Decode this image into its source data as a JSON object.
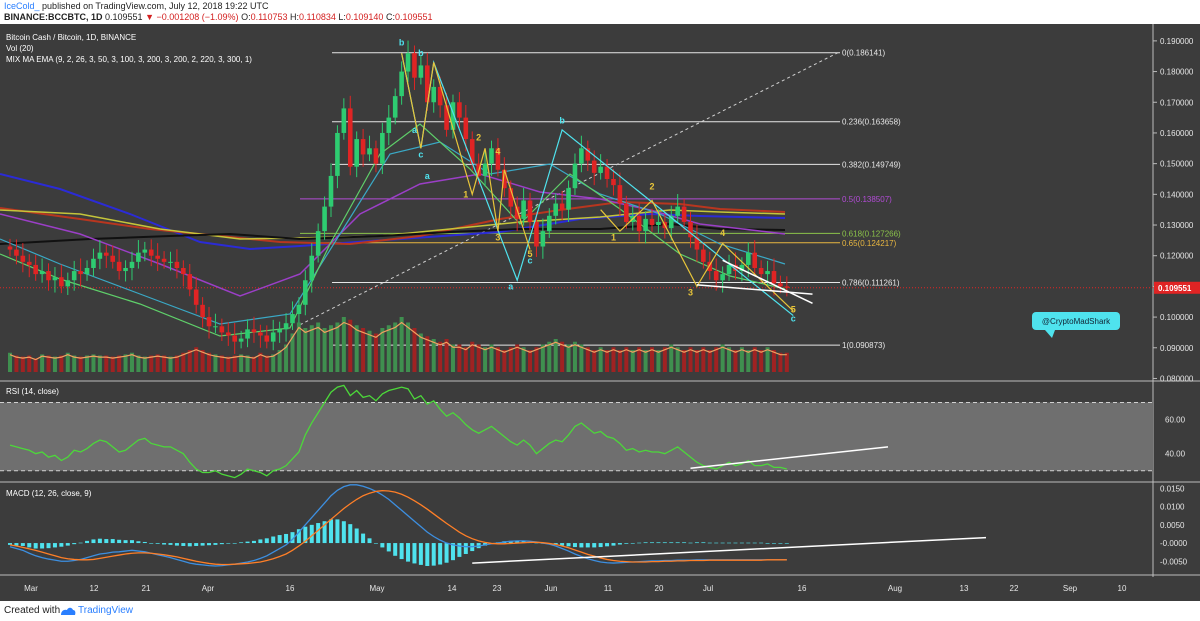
{
  "header": {
    "username": "IceCold_",
    "published_text": "published on TradingView.com, July 12, 2018 19:22 UTC",
    "symbol": "BINANCE:BCCBTC, 1D",
    "last": "0.109551",
    "change": "▼ −0.001208 (−1.09%)",
    "open_label": "O:",
    "open": "0.110753",
    "high_label": "H:",
    "high": "0.110834",
    "low_label": "L:",
    "low": "0.109140",
    "close_label": "C:",
    "close": "0.109551"
  },
  "footer": {
    "created_with": "Created with",
    "brand": "TradingView"
  },
  "colors": {
    "background": "#3c3c3c",
    "up": "#2ecc71",
    "down": "#e02424",
    "rsi": "#4cd83a",
    "macd_line": "#3d8fe0",
    "signal_line": "#ff7f27",
    "histogram": "#4fe3ee",
    "fib_618": "#8bc34a",
    "fib_65": "#e8b640",
    "fib_05": "#b24bd6",
    "current_price": "#e02424",
    "wave_label": "#4fe3ee",
    "wave_count": "#e8c53a"
  },
  "chart_data": [
    {
      "type": "candlestick",
      "title": "Bitcoin Cash / Bitcoin, 1D, BINANCE",
      "indicator_labels": [
        "Vol (20)",
        "MIX MA EMA (9, 2, 26, 3, 50, 3, 100, 3, 200, 3, 200, 2, 220, 3, 300, 1)"
      ],
      "x_ticks": [
        "Mar",
        "12",
        "21",
        "Apr",
        "16",
        "May",
        "14",
        "23",
        "Jun",
        "11",
        "20",
        "Jul",
        "16",
        "Aug",
        "13",
        "22",
        "Sep",
        "10"
      ],
      "y_ticks": [
        0.08,
        0.09,
        0.1,
        0.11,
        0.12,
        0.13,
        0.14,
        0.15,
        0.16,
        0.17,
        0.18,
        0.19
      ],
      "ylim": [
        0.0795,
        0.1955
      ],
      "current_price": 0.109551,
      "close_approx": [
        0.122,
        0.12,
        0.118,
        0.117,
        0.114,
        0.115,
        0.112,
        0.113,
        0.11,
        0.112,
        0.115,
        0.114,
        0.116,
        0.119,
        0.121,
        0.12,
        0.118,
        0.115,
        0.116,
        0.118,
        0.121,
        0.122,
        0.12,
        0.119,
        0.118,
        0.118,
        0.116,
        0.114,
        0.109,
        0.104,
        0.1,
        0.097,
        0.097,
        0.095,
        0.094,
        0.092,
        0.093,
        0.096,
        0.095,
        0.094,
        0.092,
        0.095,
        0.096,
        0.098,
        0.101,
        0.104,
        0.112,
        0.12,
        0.128,
        0.136,
        0.146,
        0.16,
        0.168,
        0.149,
        0.158,
        0.153,
        0.155,
        0.15,
        0.16,
        0.165,
        0.172,
        0.18,
        0.186,
        0.178,
        0.182,
        0.17,
        0.175,
        0.169,
        0.161,
        0.17,
        0.165,
        0.158,
        0.15,
        0.146,
        0.15,
        0.155,
        0.148,
        0.142,
        0.136,
        0.132,
        0.138,
        0.131,
        0.123,
        0.128,
        0.133,
        0.137,
        0.135,
        0.142,
        0.15,
        0.155,
        0.151,
        0.147,
        0.149,
        0.145,
        0.143,
        0.137,
        0.131,
        0.133,
        0.128,
        0.132,
        0.13,
        0.131,
        0.129,
        0.133,
        0.136,
        0.131,
        0.126,
        0.122,
        0.118,
        0.115,
        0.112,
        0.114,
        0.117,
        0.115,
        0.117,
        0.121,
        0.116,
        0.114,
        0.115,
        0.111,
        0.11,
        0.109551
      ]
    },
    {
      "type": "bar",
      "title": "Vol (20)",
      "volume_relative_approx": [
        0.35,
        0.3,
        0.28,
        0.3,
        0.25,
        0.32,
        0.3,
        0.28,
        0.3,
        0.35,
        0.3,
        0.28,
        0.3,
        0.32,
        0.3,
        0.3,
        0.28,
        0.3,
        0.32,
        0.35,
        0.3,
        0.28,
        0.3,
        0.32,
        0.3,
        0.28,
        0.3,
        0.35,
        0.4,
        0.45,
        0.4,
        0.35,
        0.32,
        0.3,
        0.28,
        0.3,
        0.32,
        0.3,
        0.28,
        0.35,
        0.3,
        0.32,
        0.4,
        0.5,
        0.7,
        0.9,
        0.8,
        0.85,
        0.9,
        0.8,
        0.85,
        0.9,
        1.0,
        0.95,
        0.85,
        0.8,
        0.75,
        0.7,
        0.8,
        0.85,
        0.9,
        1.0,
        0.9,
        0.8,
        0.7,
        0.65,
        0.6,
        0.55,
        0.6,
        0.5,
        0.5,
        0.45,
        0.55,
        0.5,
        0.45,
        0.5,
        0.45,
        0.4,
        0.45,
        0.5,
        0.45,
        0.4,
        0.45,
        0.5,
        0.55,
        0.6,
        0.55,
        0.5,
        0.55,
        0.5,
        0.45,
        0.4,
        0.45,
        0.4,
        0.45,
        0.4,
        0.45,
        0.4,
        0.45,
        0.4,
        0.45,
        0.4,
        0.45,
        0.5,
        0.45,
        0.4,
        0.45,
        0.4,
        0.45,
        0.4,
        0.45,
        0.5,
        0.45,
        0.4,
        0.45,
        0.4,
        0.45,
        0.4,
        0.45,
        0.4,
        0.35,
        0.35
      ]
    },
    {
      "type": "line",
      "title": "RSI (14, close)",
      "y_ticks": [
        40.0,
        60.0
      ],
      "band": [
        30,
        70
      ],
      "ylim": [
        24,
        82
      ],
      "values_approx": [
        45,
        44,
        43,
        42,
        40,
        41,
        38,
        39,
        36,
        38,
        42,
        41,
        43,
        46,
        48,
        47,
        44,
        41,
        42,
        45,
        48,
        49,
        46,
        45,
        44,
        44,
        42,
        40,
        35,
        31,
        29,
        29,
        30,
        28,
        27,
        26,
        28,
        31,
        30,
        29,
        27,
        30,
        31,
        33,
        37,
        41,
        51,
        58,
        64,
        70,
        76,
        79,
        80,
        74,
        77,
        73,
        74,
        71,
        75,
        77,
        78,
        79,
        78,
        72,
        74,
        69,
        71,
        66,
        62,
        64,
        61,
        57,
        54,
        52,
        54,
        56,
        53,
        50,
        47,
        45,
        48,
        45,
        40,
        43,
        46,
        48,
        47,
        51,
        56,
        58,
        55,
        52,
        53,
        50,
        49,
        46,
        42,
        43,
        41,
        42,
        41,
        41,
        40,
        42,
        44,
        41,
        38,
        35,
        33,
        32,
        31,
        33,
        35,
        33,
        34,
        36,
        33,
        33,
        34,
        32,
        32,
        31
      ]
    },
    {
      "type": "line",
      "title": "MACD (12, 26, close, 9)",
      "y_ticks": [
        "0.0150",
        "0.0100",
        "0.0050",
        "-0.0000",
        "-0.0050"
      ],
      "ylim": [
        -0.0085,
        0.0165
      ],
      "macd_approx": [
        -0.001,
        -0.0015,
        -0.002,
        -0.0028,
        -0.0035,
        -0.004,
        -0.0044,
        -0.0047,
        -0.005,
        -0.005,
        -0.0048,
        -0.0045,
        -0.004,
        -0.0035,
        -0.003,
        -0.0028,
        -0.0025,
        -0.0024,
        -0.0022,
        -0.002,
        -0.0022,
        -0.0024,
        -0.0028,
        -0.0032,
        -0.0036,
        -0.004,
        -0.0045,
        -0.005,
        -0.0055,
        -0.0058,
        -0.006,
        -0.0062,
        -0.0063,
        -0.0062,
        -0.006,
        -0.0058,
        -0.0055,
        -0.0052,
        -0.0048,
        -0.0042,
        -0.0035,
        -0.0025,
        -0.0015,
        -0.0005,
        0.001,
        0.003,
        0.005,
        0.007,
        0.009,
        0.011,
        0.013,
        0.0145,
        0.0155,
        0.016,
        0.016,
        0.0156,
        0.015,
        0.0142,
        0.0132,
        0.012,
        0.0105,
        0.009,
        0.0075,
        0.006,
        0.0045,
        0.003,
        0.0018,
        0.0008,
        0.0,
        -0.0005,
        -0.0008,
        -0.001,
        -0.001,
        -0.0008,
        -0.0005,
        -0.0002,
        0.0,
        0.0003,
        0.0005,
        0.0006,
        0.0006,
        0.0005,
        0.0003,
        0.0,
        -0.0003,
        -0.0008,
        -0.0015,
        -0.0022,
        -0.003,
        -0.0037,
        -0.0043,
        -0.0048,
        -0.0052,
        -0.0054,
        -0.0055,
        -0.0054,
        -0.0053,
        -0.0052,
        -0.0051,
        -0.005,
        -0.0049,
        -0.0049,
        -0.0048,
        -0.0048,
        -0.0047,
        -0.0047,
        -0.0047,
        -0.0046,
        -0.0046,
        -0.0046,
        -0.0046,
        -0.0046,
        -0.0046,
        -0.0046,
        -0.0046,
        -0.0046,
        -0.0046,
        -0.0046,
        -0.0046,
        -0.0046,
        -0.0046,
        -0.0046
      ],
      "signal_approx": [
        -0.0005,
        -0.0008,
        -0.0012,
        -0.0016,
        -0.002,
        -0.0025,
        -0.003,
        -0.0035,
        -0.004,
        -0.0043,
        -0.0045,
        -0.0046,
        -0.0046,
        -0.0045,
        -0.0042,
        -0.0039,
        -0.0036,
        -0.0033,
        -0.003,
        -0.0028,
        -0.0027,
        -0.0027,
        -0.0028,
        -0.003,
        -0.0032,
        -0.0035,
        -0.0038,
        -0.0042,
        -0.0046,
        -0.005,
        -0.0053,
        -0.0056,
        -0.0058,
        -0.0059,
        -0.0059,
        -0.0058,
        -0.0057,
        -0.0056,
        -0.0054,
        -0.0052,
        -0.0048,
        -0.0043,
        -0.0037,
        -0.003,
        -0.002,
        -0.0008,
        0.0005,
        0.002,
        0.0035,
        0.005,
        0.0065,
        0.008,
        0.0095,
        0.0108,
        0.012,
        0.013,
        0.0137,
        0.0142,
        0.0144,
        0.0143,
        0.014,
        0.0134,
        0.0126,
        0.0116,
        0.0105,
        0.0093,
        0.008,
        0.0067,
        0.0054,
        0.0042,
        0.003,
        0.002,
        0.0012,
        0.0006,
        0.0002,
        -0.0001,
        -0.0002,
        -0.0002,
        -0.0001,
        0.0,
        0.0001,
        0.0002,
        0.0002,
        0.0001,
        -0.0001,
        -0.0004,
        -0.0008,
        -0.0013,
        -0.0019,
        -0.0025,
        -0.0031,
        -0.0036,
        -0.0041,
        -0.0045,
        -0.0048,
        -0.005,
        -0.0051,
        -0.0052,
        -0.0052,
        -0.0052,
        -0.0051,
        -0.0051,
        -0.005,
        -0.005,
        -0.0049,
        -0.0049,
        -0.0048,
        -0.0048,
        -0.0048,
        -0.0047,
        -0.0047,
        -0.0047,
        -0.0047,
        -0.0047,
        -0.0047,
        -0.0047,
        -0.0047,
        -0.0047,
        -0.0046,
        -0.0046,
        -0.0046,
        -0.0046
      ]
    }
  ],
  "fib_levels": [
    {
      "label": "0(0.186141)",
      "value": 0.186141,
      "color": "#e6e6e6"
    },
    {
      "label": "0.236(0.163658)",
      "value": 0.163658,
      "color": "#e6e6e6"
    },
    {
      "label": "0.382(0.149749)",
      "value": 0.149749,
      "color": "#e6e6e6"
    },
    {
      "label": "0.5(0.138507)",
      "value": 0.138507,
      "color": "#b24bd6"
    },
    {
      "label": "0.618(0.127266)",
      "value": 0.127266,
      "color": "#8bc34a"
    },
    {
      "label": "0.65(0.124217)",
      "value": 0.124217,
      "color": "#e8b640"
    },
    {
      "label": "0.786(0.111261)",
      "value": 0.111261,
      "color": "#e6e6e6"
    },
    {
      "label": "1(0.090873)",
      "value": 0.090873,
      "color": "#e6e6e6"
    }
  ],
  "wave_labels": [
    {
      "text": "b",
      "i": 61,
      "price": 0.1885,
      "color": "#4fe3ee"
    },
    {
      "text": "b",
      "i": 64,
      "price": 0.185,
      "color": "#4fe3ee"
    },
    {
      "text": "a",
      "i": 63,
      "price": 0.16,
      "color": "#4fe3ee"
    },
    {
      "text": "c",
      "i": 64,
      "price": 0.152,
      "color": "#4fe3ee"
    },
    {
      "text": "a",
      "i": 65,
      "price": 0.145,
      "color": "#4fe3ee"
    },
    {
      "text": "b",
      "i": 86,
      "price": 0.163,
      "color": "#4fe3ee"
    },
    {
      "text": "c",
      "i": 81,
      "price": 0.1175,
      "color": "#4fe3ee"
    },
    {
      "text": "a",
      "i": 78,
      "price": 0.109,
      "color": "#4fe3ee"
    },
    {
      "text": "c",
      "i": 122,
      "price": 0.0985,
      "color": "#4fe3ee"
    },
    {
      "text": "2",
      "i": 73,
      "price": 0.1575,
      "color": "#e8c53a"
    },
    {
      "text": "4",
      "i": 76,
      "price": 0.153,
      "color": "#e8c53a"
    },
    {
      "text": "1",
      "i": 71,
      "price": 0.139,
      "color": "#e8c53a"
    },
    {
      "text": "3",
      "i": 76,
      "price": 0.125,
      "color": "#e8c53a"
    },
    {
      "text": "5",
      "i": 81,
      "price": 0.1195,
      "color": "#e8c53a"
    },
    {
      "text": "2",
      "i": 100,
      "price": 0.1415,
      "color": "#e8c53a"
    },
    {
      "text": "1",
      "i": 94,
      "price": 0.125,
      "color": "#e8c53a"
    },
    {
      "text": "4",
      "i": 111,
      "price": 0.1265,
      "color": "#e8c53a"
    },
    {
      "text": "3",
      "i": 106,
      "price": 0.107,
      "color": "#e8c53a"
    },
    {
      "text": "5",
      "i": 122,
      "price": 0.1015,
      "color": "#e8c53a"
    }
  ],
  "annotation": {
    "text": "@CryptoMadShark"
  }
}
